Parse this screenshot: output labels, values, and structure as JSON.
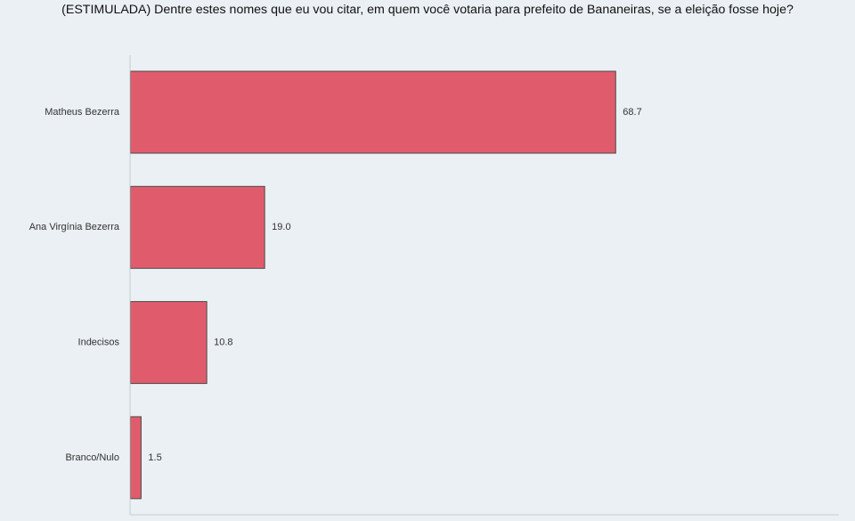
{
  "title": "(ESTIMULADA) Dentre estes nomes que eu vou citar, em quem você votaria para prefeito de Bananeiras, se a eleição fosse hoje?",
  "chart_data": {
    "type": "bar",
    "orientation": "horizontal",
    "title": "(ESTIMULADA) Dentre estes nomes que eu vou citar, em quem você votaria para prefeito de Bananeiras, se a eleição fosse hoje?",
    "xlabel": "",
    "ylabel": "",
    "categories": [
      "Matheus Bezerra",
      "Ana Virgínia Bezerra",
      "Indecisos",
      "Branco/Nulo"
    ],
    "values": [
      68.7,
      19.0,
      10.8,
      1.5
    ],
    "value_labels": [
      "68.7",
      "19.0",
      "10.8",
      "1.5"
    ],
    "xlim": [
      0,
      100
    ],
    "grid": false,
    "legend": "none",
    "colors": {
      "bar": "#e05c6c",
      "bar_edge": "#4a4a4a",
      "axis": "#cccccc",
      "background": "#eaf0f4"
    }
  }
}
